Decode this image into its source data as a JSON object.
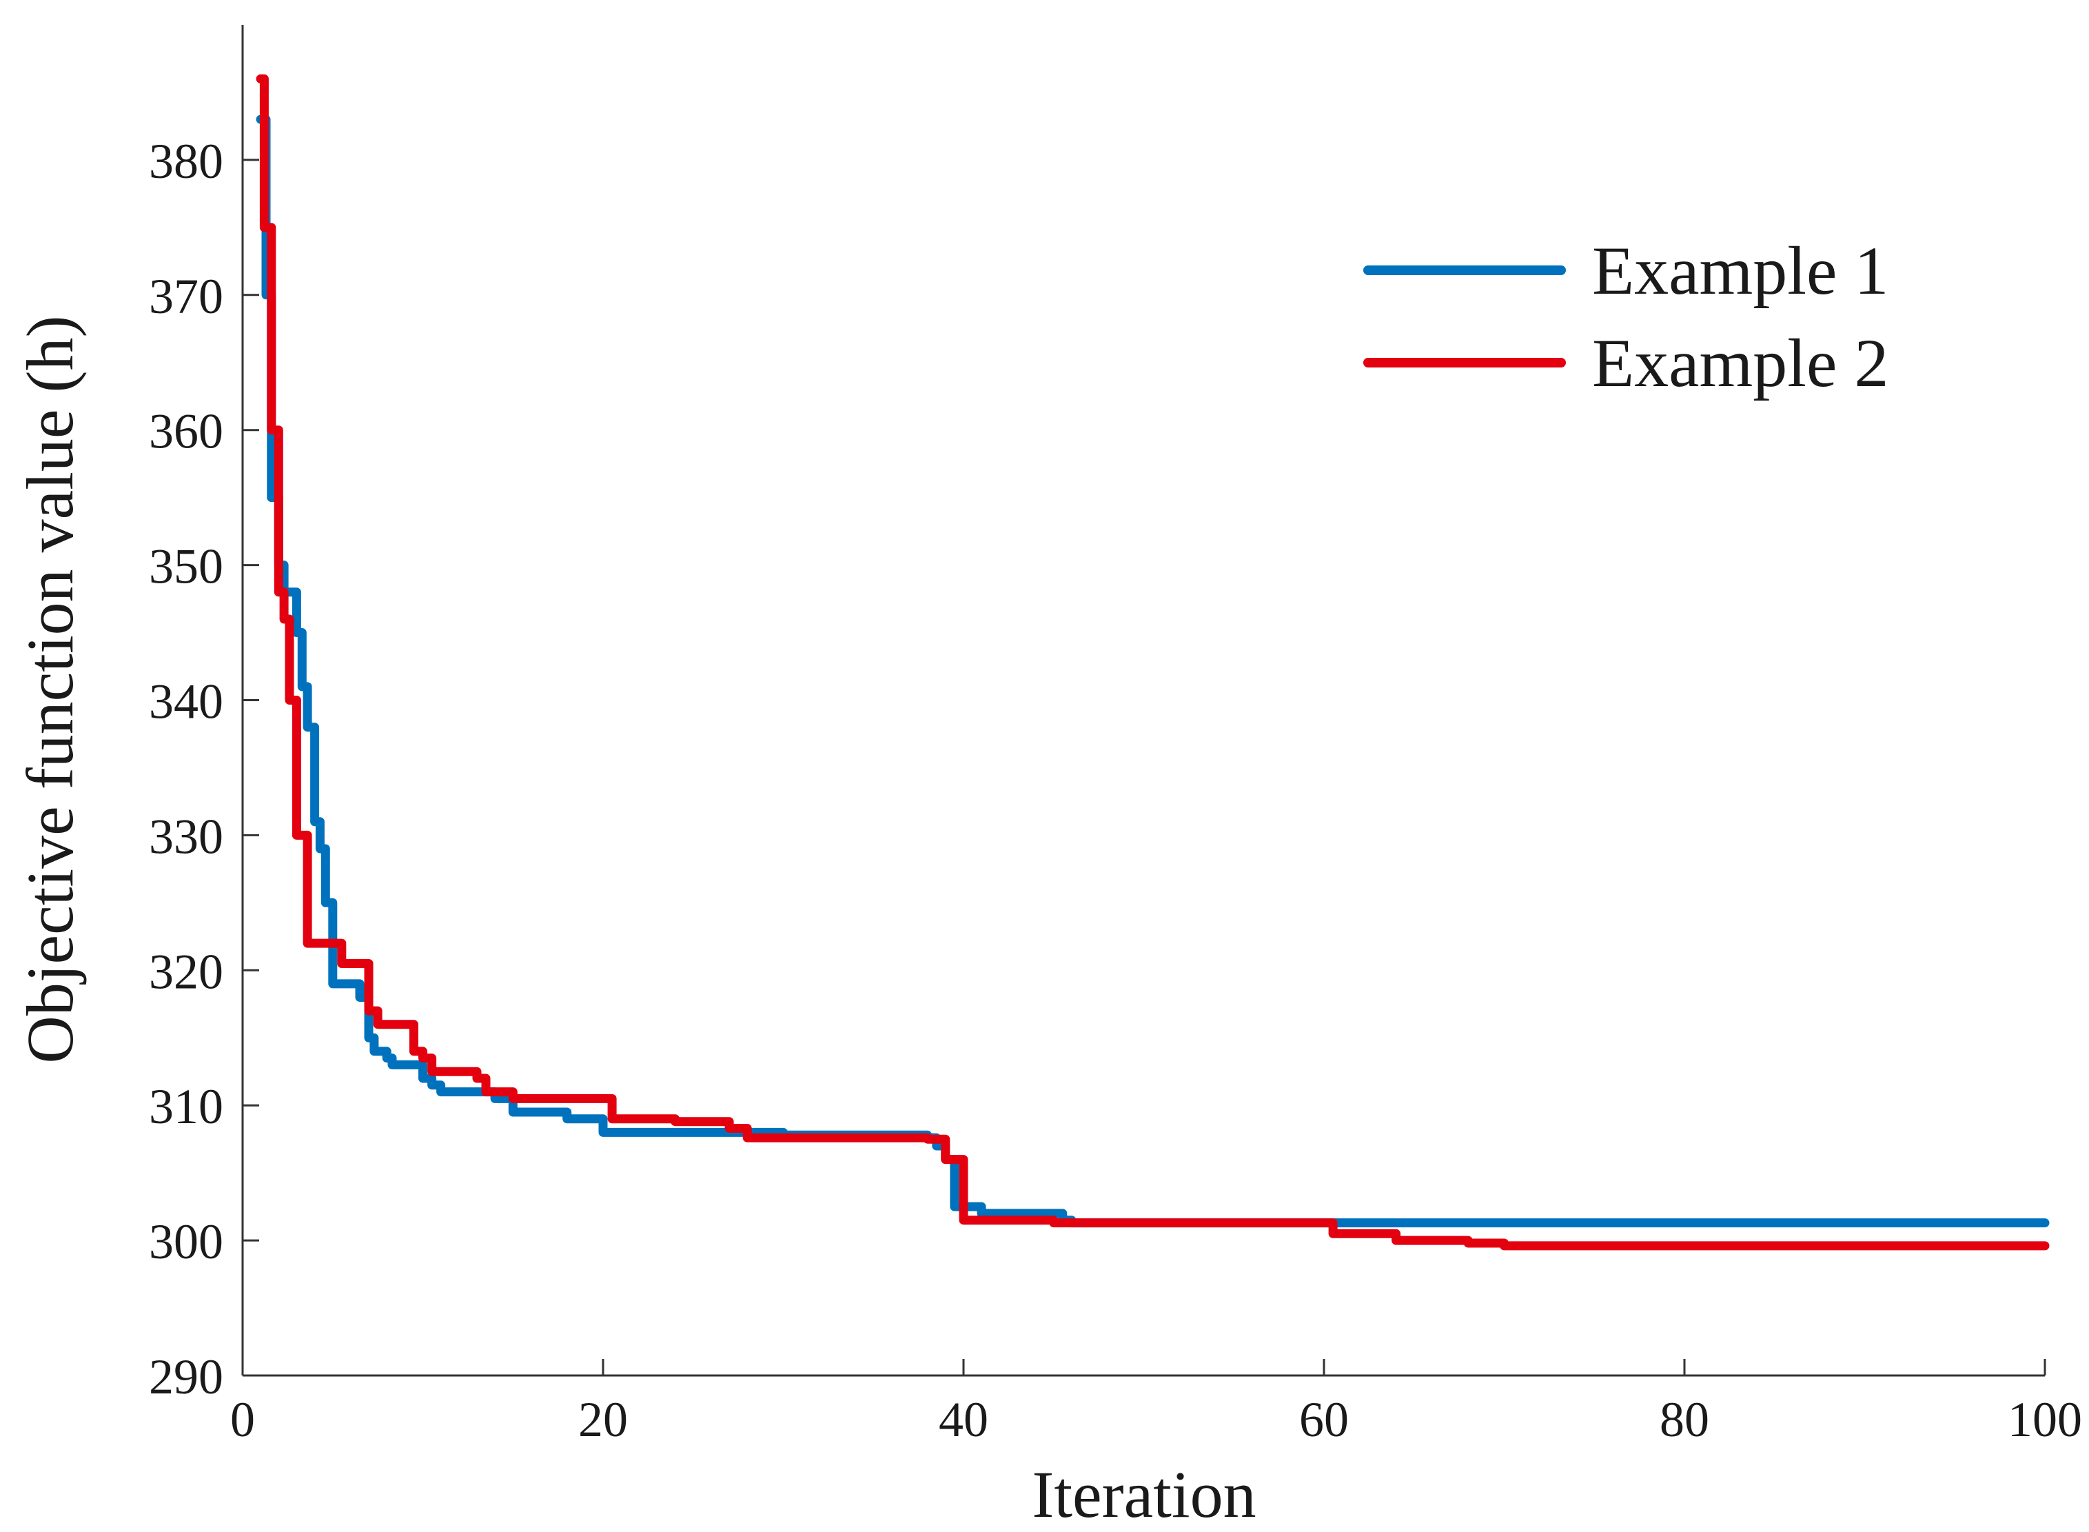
{
  "chart_data": {
    "type": "line",
    "title": "",
    "xlabel": "Iteration",
    "ylabel": "Objective function value (h)",
    "xlim": [
      0,
      100
    ],
    "ylim": [
      290,
      390
    ],
    "xticks": [
      0,
      20,
      40,
      60,
      80,
      100
    ],
    "yticks": [
      290,
      300,
      310,
      320,
      330,
      340,
      350,
      360,
      370,
      380
    ],
    "grid": false,
    "legend_position": "top-right",
    "series": [
      {
        "name": "Example 1",
        "color": "#0072BD",
        "x": [
          1,
          1.3,
          1.6,
          2,
          2.3,
          2.6,
          3,
          3.3,
          3.6,
          4,
          4.3,
          4.6,
          5,
          6,
          6.5,
          7,
          7.3,
          8,
          8.3,
          9,
          10,
          10.5,
          11,
          14,
          15,
          18,
          20,
          22,
          28,
          30,
          34,
          38,
          38.5,
          39,
          39.5,
          40,
          40.5,
          41,
          45,
          45.5,
          46,
          50,
          60,
          70,
          80,
          100
        ],
        "y": [
          383,
          370,
          355,
          350,
          348,
          348,
          345,
          341,
          338,
          331,
          329,
          325,
          319,
          319,
          318,
          315,
          314,
          313.5,
          313,
          313,
          312,
          311.5,
          311,
          310.5,
          309.5,
          309,
          308,
          308,
          308,
          307.8,
          307.8,
          307.6,
          307,
          306,
          302.5,
          302.5,
          302.5,
          302,
          302,
          301.5,
          301.3,
          301.3,
          301.3,
          301.3,
          301.3,
          301.3
        ]
      },
      {
        "name": "Example 2",
        "color": "#E3000F",
        "x": [
          1,
          1.2,
          1.6,
          2,
          2.3,
          2.6,
          3,
          3.3,
          3.6,
          4,
          4.5,
          5,
          5.5,
          6,
          6.5,
          7,
          7.5,
          8,
          9,
          9.5,
          10,
          10.5,
          11,
          13,
          13.5,
          14,
          15,
          20,
          20.5,
          21,
          24,
          26,
          27,
          28,
          30,
          38,
          38.5,
          39,
          39.5,
          40,
          40.5,
          45,
          50,
          60,
          60.5,
          64,
          66,
          68,
          70,
          80,
          100
        ],
        "y": [
          386,
          375,
          360,
          348,
          346,
          340,
          330,
          330,
          322,
          322,
          322,
          322,
          320.5,
          320.5,
          320.5,
          317,
          316,
          316,
          316,
          314,
          313.5,
          312.5,
          312.5,
          312,
          311,
          311,
          310.5,
          310.5,
          309,
          309,
          308.8,
          308.8,
          308.3,
          307.6,
          307.6,
          307.5,
          307.5,
          306,
          306,
          301.5,
          301.5,
          301.3,
          301.3,
          301.3,
          300.5,
          300,
          300,
          299.8,
          299.6,
          299.6,
          299.6
        ]
      }
    ]
  }
}
